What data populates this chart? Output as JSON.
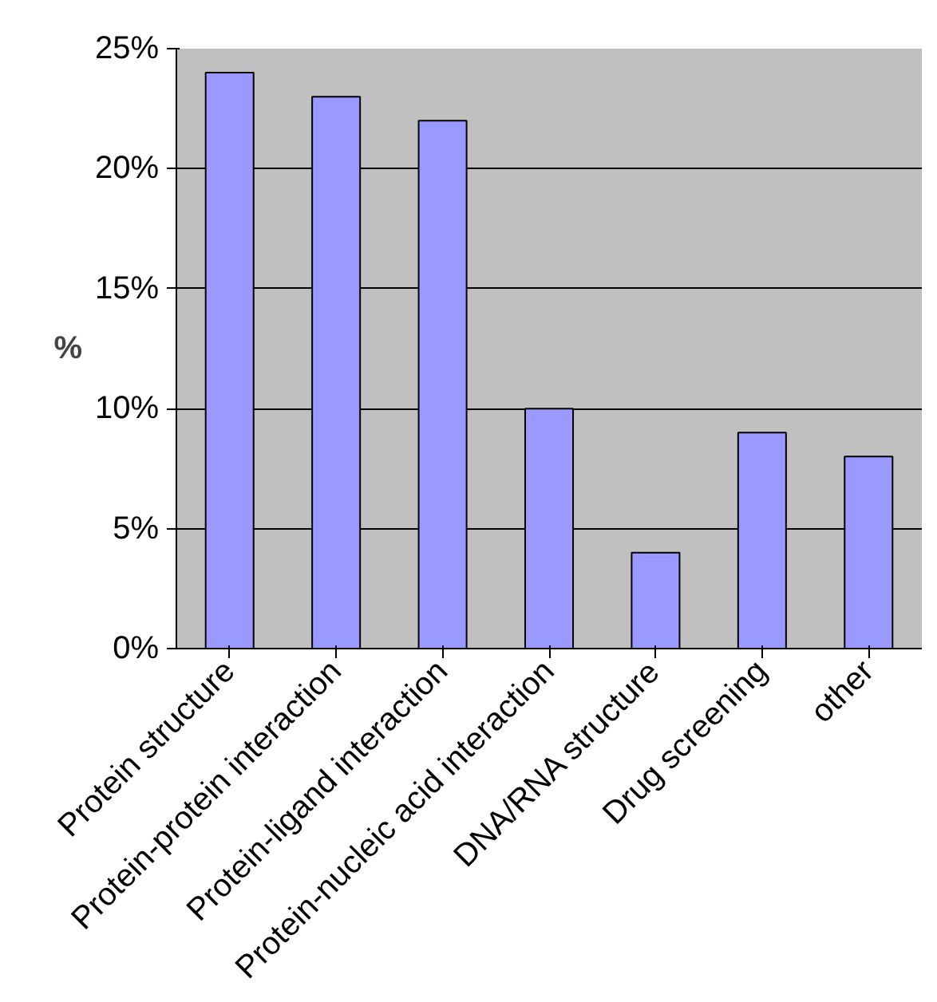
{
  "chart_data": {
    "type": "bar",
    "ylabel": "%",
    "categories": [
      "Protein structure",
      "Protein-protein interaction",
      "Protein-ligand interaction",
      "Protein-nucleic acid interaction",
      "DNA/RNA structure",
      "Drug screening",
      "other"
    ],
    "values": [
      24,
      23,
      22,
      10,
      4,
      9,
      8
    ],
    "color": "#9999ff",
    "ylim": [
      0,
      25
    ],
    "yticks": [
      {
        "value": 0,
        "label": "0%"
      },
      {
        "value": 5,
        "label": "5%"
      },
      {
        "value": 10,
        "label": "10%"
      },
      {
        "value": 15,
        "label": "15%"
      },
      {
        "value": 20,
        "label": "20%"
      },
      {
        "value": 25,
        "label": "25%"
      }
    ],
    "grid": "y"
  }
}
